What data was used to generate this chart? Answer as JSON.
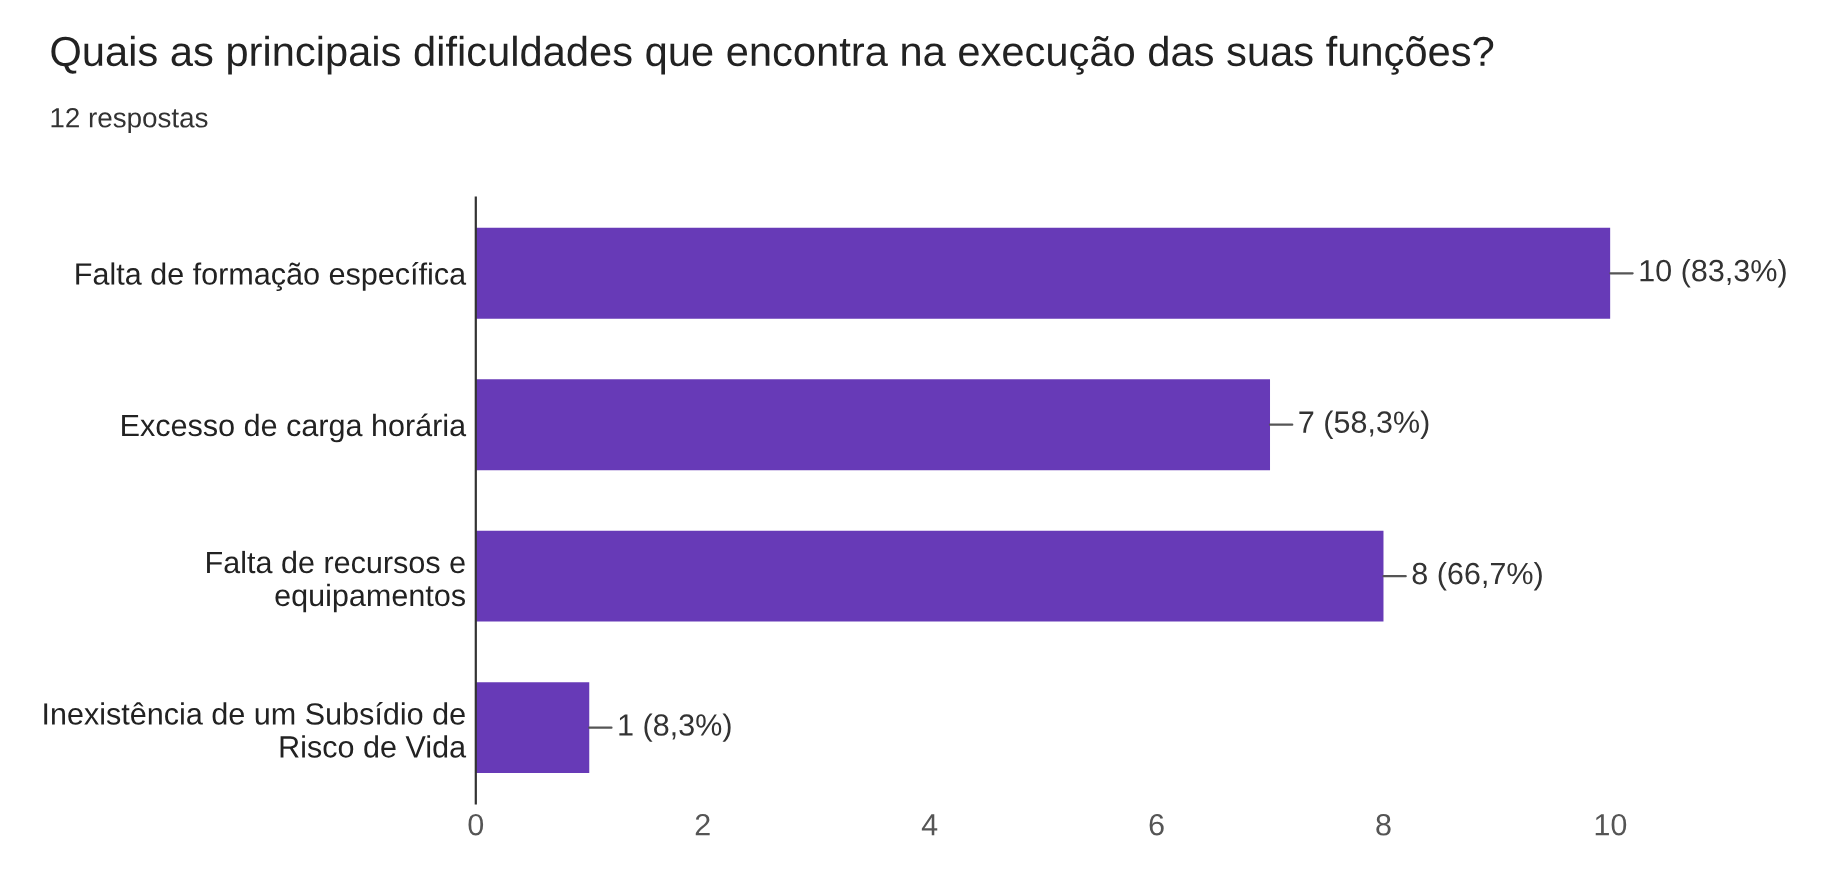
{
  "chart_data": {
    "type": "bar",
    "orientation": "horizontal",
    "title": "Quais as principais dificuldades que encontra na execução das suas funções?",
    "subtitle": "12 respostas",
    "categories": [
      "Falta de formação específica",
      "Excesso de carga horária",
      "Falta de recursos e\nequipamentos",
      "Inexistência de um Subsídio de\nRisco de Vida"
    ],
    "values": [
      10,
      7,
      8,
      1
    ],
    "color": "#673ab7",
    "value_labels": [
      "10 (83,3%)",
      "7 (58,3%)",
      "8 (66,7%)",
      "1 (8,3%)"
    ],
    "xlim": [
      0,
      10
    ],
    "xticks": [
      0,
      2,
      4,
      6,
      8,
      10
    ],
    "grid": false
  }
}
